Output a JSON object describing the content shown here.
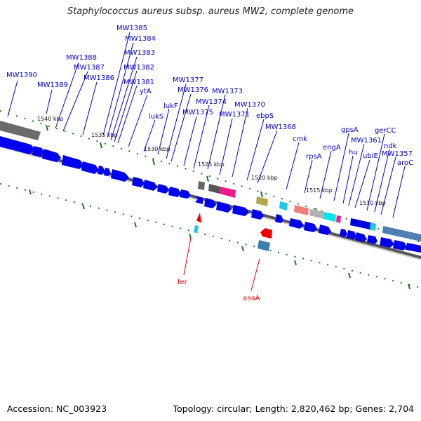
{
  "title": "Staphylococcus aureus subsp. aureus MW2, complete genome",
  "footer": {
    "accession": "Accession: NC_003923",
    "summary": "Topology: circular; Length: 2,820,462 bp; Genes: 2,704"
  },
  "colors": {
    "gene_label": "#0000cc",
    "rna_label": "#dd0000",
    "forward_gene": "#0000ee",
    "backbone": "#8a8a8a",
    "tick": "#1a7a1a"
  },
  "scale_labels": [
    "1540 kbp",
    "1535 kbp",
    "1530 kbp",
    "1525 kbp",
    "1520 kbp",
    "1515 kbp",
    "1510 kbp"
  ],
  "gene_labels": [
    "MW1390",
    "MW1389",
    "MW1388",
    "MW1387",
    "MW1386",
    "MW1385",
    "MW1384",
    "MW1383",
    "MW1382",
    "MW1381",
    "ytA",
    "lukS",
    "lukF",
    "MW1377",
    "MW1376",
    "MW1375",
    "MW1374",
    "MW1373",
    "MW1371",
    "MW1370",
    "ebpS",
    "MW1368",
    "cmk",
    "rpsA",
    "engA",
    "gpsA",
    "hu",
    "MW1361",
    "ubiE",
    "gerCC",
    "ndk",
    "MW1357",
    "aroC"
  ],
  "rna_labels": [
    "fer",
    "ansA"
  ]
}
